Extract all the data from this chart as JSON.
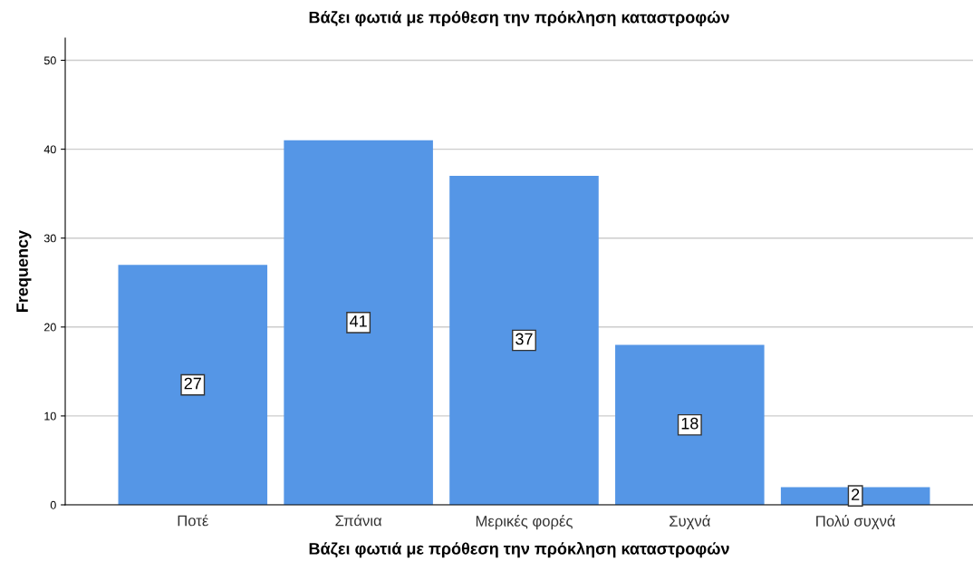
{
  "chart_data": {
    "type": "bar",
    "title": "Βάζει φωτιά με πρόθεση την πρόκληση καταστροφών",
    "xlabel": "Βάζει φωτιά με πρόθεση την πρόκληση καταστροφών",
    "ylabel": "Frequency",
    "categories": [
      "Ποτέ",
      "Σπάνια",
      "Μερικές φορές",
      "Συχνά",
      "Πολύ συχνά"
    ],
    "values": [
      27,
      41,
      37,
      18,
      2
    ],
    "color": "#5596e6",
    "ylim": [
      0,
      52.5
    ],
    "yticks": [
      0,
      10,
      20,
      30,
      40,
      50
    ],
    "grid": "y",
    "data_labels": true
  }
}
